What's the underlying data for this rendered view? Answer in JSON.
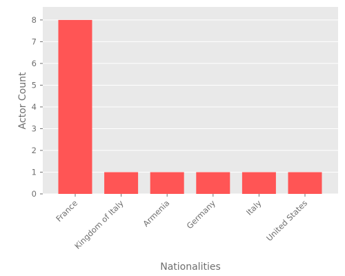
{
  "chart_data": {
    "type": "bar",
    "categories": [
      "France",
      "Kingdom of Italy",
      "Armenia",
      "Germany",
      "Italy",
      "United States"
    ],
    "values": [
      8,
      1,
      1,
      1,
      1,
      1
    ],
    "title": "",
    "xlabel": "Nationalities",
    "ylabel": "Actor Count",
    "ylim": [
      0,
      8.6
    ],
    "yticks": [
      0,
      1,
      2,
      3,
      4,
      5,
      6,
      7,
      8
    ],
    "grid": true,
    "bar_color": "#ff5555",
    "plot_background": "#e9e9e9",
    "grid_color": "#ffffff",
    "text_color": "#6e6e6e"
  }
}
